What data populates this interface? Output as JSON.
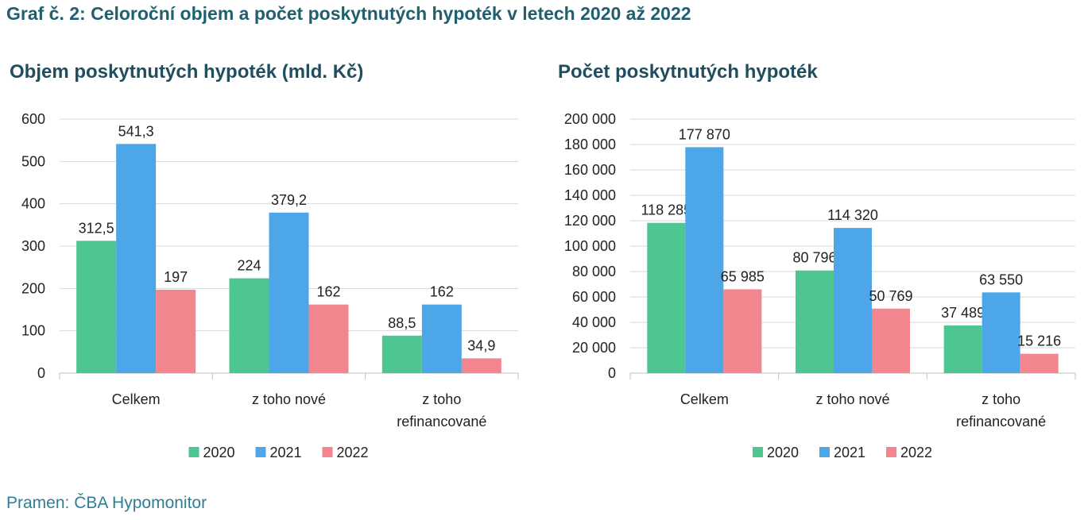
{
  "title": "Graf č. 2: Celoroční objem a počet poskytnutých hypoték v letech 2020 až 2022",
  "source": "Pramen: ČBA Hypomonitor",
  "colors": {
    "2020": "#4dc692",
    "2021": "#4da6e8",
    "2022": "#f2858e"
  },
  "chart_data": [
    {
      "type": "bar",
      "title": "Objem poskytnutých hypoték (mld. Kč)",
      "categories": [
        [
          "Celkem"
        ],
        [
          "z toho nové"
        ],
        [
          "z toho",
          "refinancované"
        ]
      ],
      "ylim": [
        0,
        600
      ],
      "yticks": [
        "0",
        "100",
        "200",
        "300",
        "400",
        "500",
        "600"
      ],
      "grid": true,
      "legend": "bottom",
      "series": [
        {
          "name": "2020",
          "values": [
            312.5,
            224,
            88.5
          ],
          "labels": [
            "312,5",
            "224",
            "88,5"
          ]
        },
        {
          "name": "2021",
          "values": [
            541.3,
            379.2,
            162
          ],
          "labels": [
            "541,3",
            "379,2",
            "162"
          ]
        },
        {
          "name": "2022",
          "values": [
            197,
            162,
            34.9
          ],
          "labels": [
            "197",
            "162",
            "34,9"
          ]
        }
      ]
    },
    {
      "type": "bar",
      "title": "Počet poskytnutých hypoték",
      "categories": [
        [
          "Celkem"
        ],
        [
          "z toho nové"
        ],
        [
          "z toho",
          "refinancované"
        ]
      ],
      "ylim": [
        0,
        200000
      ],
      "yticks": [
        "0",
        "20 000",
        "40 000",
        "60 000",
        "80 000",
        "100 000",
        "120 000",
        "140 000",
        "160 000",
        "180 000",
        "200 000"
      ],
      "grid": true,
      "legend": "bottom",
      "series": [
        {
          "name": "2020",
          "values": [
            118285,
            80796,
            37489
          ],
          "labels": [
            "118 285",
            "80 796",
            "37 489"
          ]
        },
        {
          "name": "2021",
          "values": [
            177870,
            114320,
            63550
          ],
          "labels": [
            "177 870",
            "114 320",
            "63 550"
          ]
        },
        {
          "name": "2022",
          "values": [
            65985,
            50769,
            15216
          ],
          "labels": [
            "65 985",
            "50 769",
            "15 216"
          ]
        }
      ]
    }
  ]
}
